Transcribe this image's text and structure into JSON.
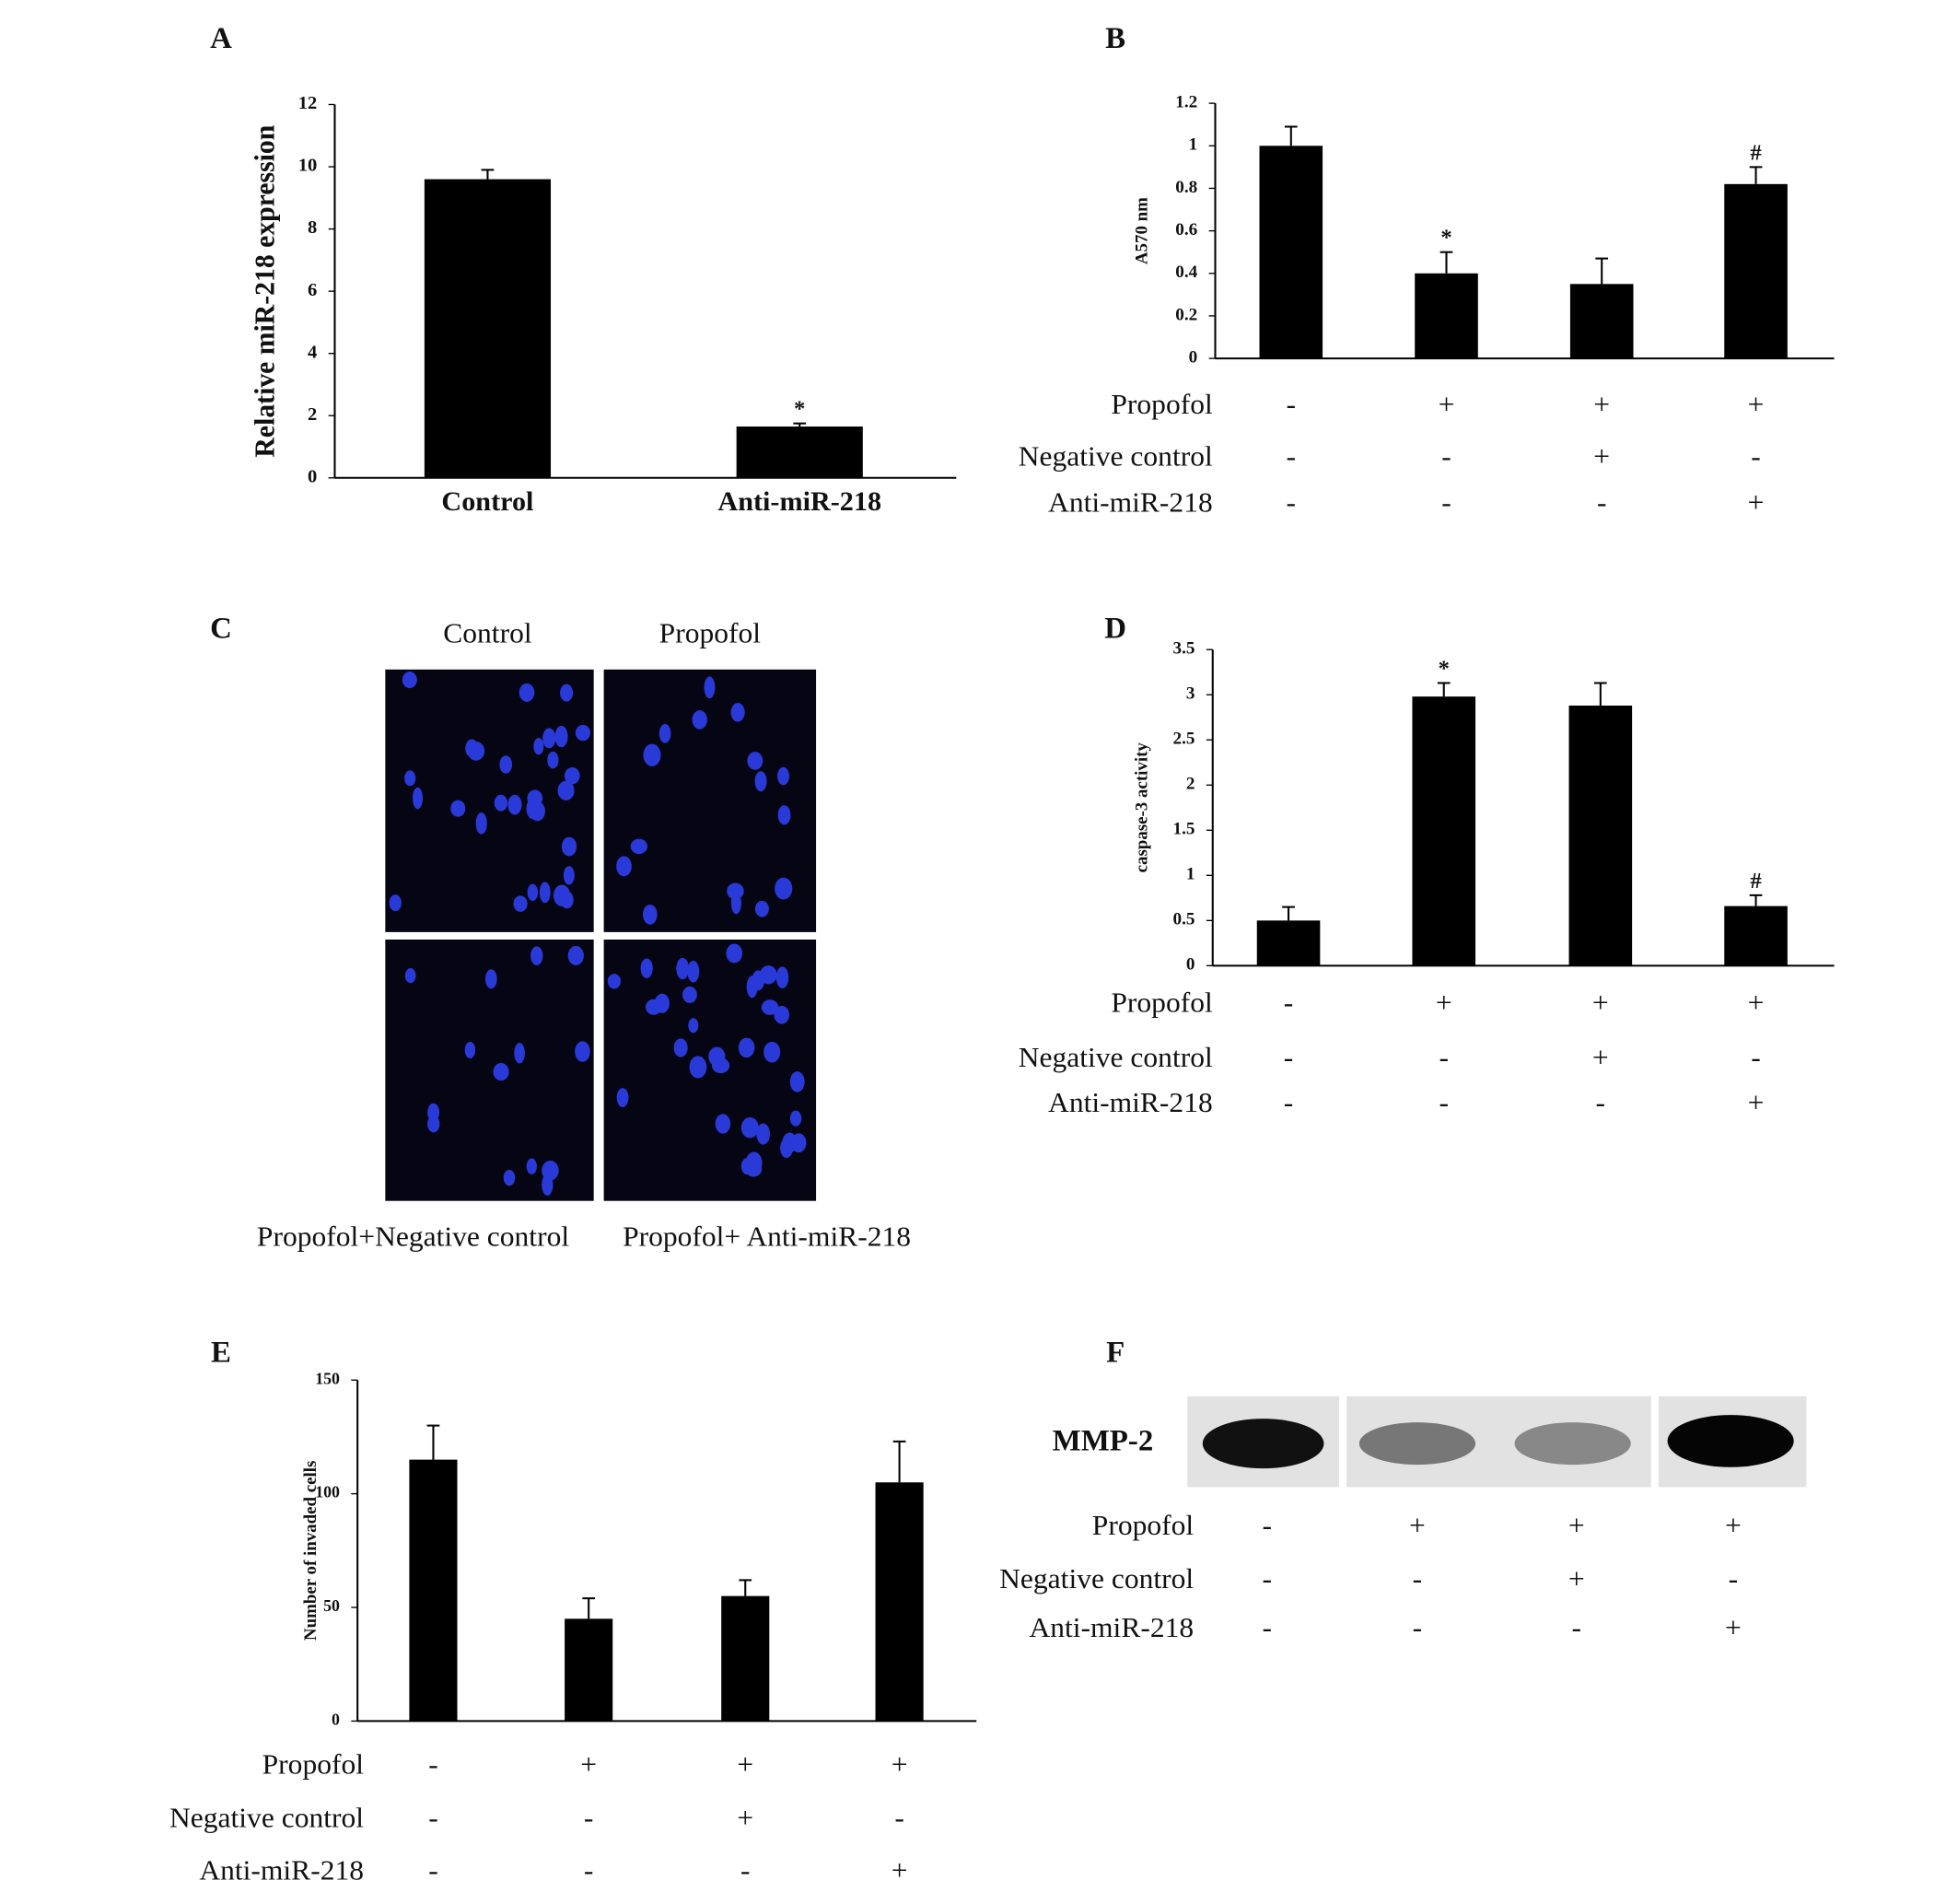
{
  "chart_data": [
    {
      "type": "bar",
      "panel": "A",
      "ylabel": "Relative miR-218 expression",
      "categories": [
        "Control",
        "Anti-miR-218"
      ],
      "values": [
        9.6,
        1.65
      ],
      "errors": [
        0.3,
        0.1
      ],
      "markers": [
        null,
        "*"
      ],
      "color": "#000000",
      "ylim": [
        0,
        12
      ],
      "yticks": [
        0,
        2,
        4,
        6,
        8,
        10,
        12
      ]
    },
    {
      "type": "bar",
      "panel": "B",
      "ylabel": "A570 nm",
      "values": [
        1.0,
        0.4,
        0.35,
        0.82
      ],
      "errors": [
        0.09,
        0.1,
        0.12,
        0.08
      ],
      "markers": [
        null,
        "*",
        null,
        "#"
      ],
      "color": "#000000",
      "ylim": [
        0,
        1.2
      ],
      "yticks": [
        0,
        0.2,
        0.4,
        0.6,
        0.8,
        1,
        1.2
      ],
      "rows": [
        {
          "name": "Propofol",
          "signs": [
            "-",
            "+",
            "+",
            "+"
          ]
        },
        {
          "name": "Negative control",
          "signs": [
            "-",
            "-",
            "+",
            "-"
          ]
        },
        {
          "name": "Anti-miR-218",
          "signs": [
            "-",
            "-",
            "-",
            "+"
          ]
        }
      ]
    },
    {
      "type": "bar",
      "panel": "D",
      "ylabel": "caspase-3 activity",
      "values": [
        0.5,
        2.98,
        2.88,
        0.66
      ],
      "errors": [
        0.15,
        0.15,
        0.25,
        0.12
      ],
      "markers": [
        null,
        "*",
        null,
        "#"
      ],
      "color": "#000000",
      "ylim": [
        0,
        3.5
      ],
      "yticks": [
        0,
        0.5,
        1,
        1.5,
        2,
        2.5,
        3,
        3.5
      ],
      "rows": [
        {
          "name": "Propofol",
          "signs": [
            "-",
            "+",
            "+",
            "+"
          ]
        },
        {
          "name": "Negative control",
          "signs": [
            "-",
            "-",
            "+",
            "-"
          ]
        },
        {
          "name": "Anti-miR-218",
          "signs": [
            "-",
            "-",
            "-",
            "+"
          ]
        }
      ]
    },
    {
      "type": "bar",
      "panel": "E",
      "ylabel": "Number of invaded cells",
      "values": [
        115,
        45,
        55,
        105
      ],
      "errors": [
        15,
        9,
        7,
        18
      ],
      "markers": [
        null,
        null,
        null,
        null
      ],
      "color": "#000000",
      "ylim": [
        0,
        150
      ],
      "yticks": [
        0,
        50,
        100,
        150
      ],
      "rows": [
        {
          "name": "Propofol",
          "signs": [
            "-",
            "+",
            "+",
            "+"
          ]
        },
        {
          "name": "Negative control",
          "signs": [
            "-",
            "-",
            "+",
            "-"
          ]
        },
        {
          "name": "Anti-miR-218",
          "signs": [
            "-",
            "-",
            "-",
            "+"
          ]
        }
      ]
    }
  ],
  "panel_c": {
    "panel": "C",
    "titles": [
      "Control",
      "Propofol",
      "Propofol+Negative control",
      "Propofol+ Anti-miR-218"
    ]
  },
  "panel_f": {
    "panel": "F",
    "band_label": "MMP-2",
    "rows": [
      {
        "name": "Propofol",
        "signs": [
          "-",
          "+",
          "+",
          "+"
        ]
      },
      {
        "name": "Negative control",
        "signs": [
          "-",
          "-",
          "+",
          "-"
        ]
      },
      {
        "name": "Anti-miR-218",
        "signs": [
          "-",
          "-",
          "-",
          "+"
        ]
      }
    ]
  }
}
